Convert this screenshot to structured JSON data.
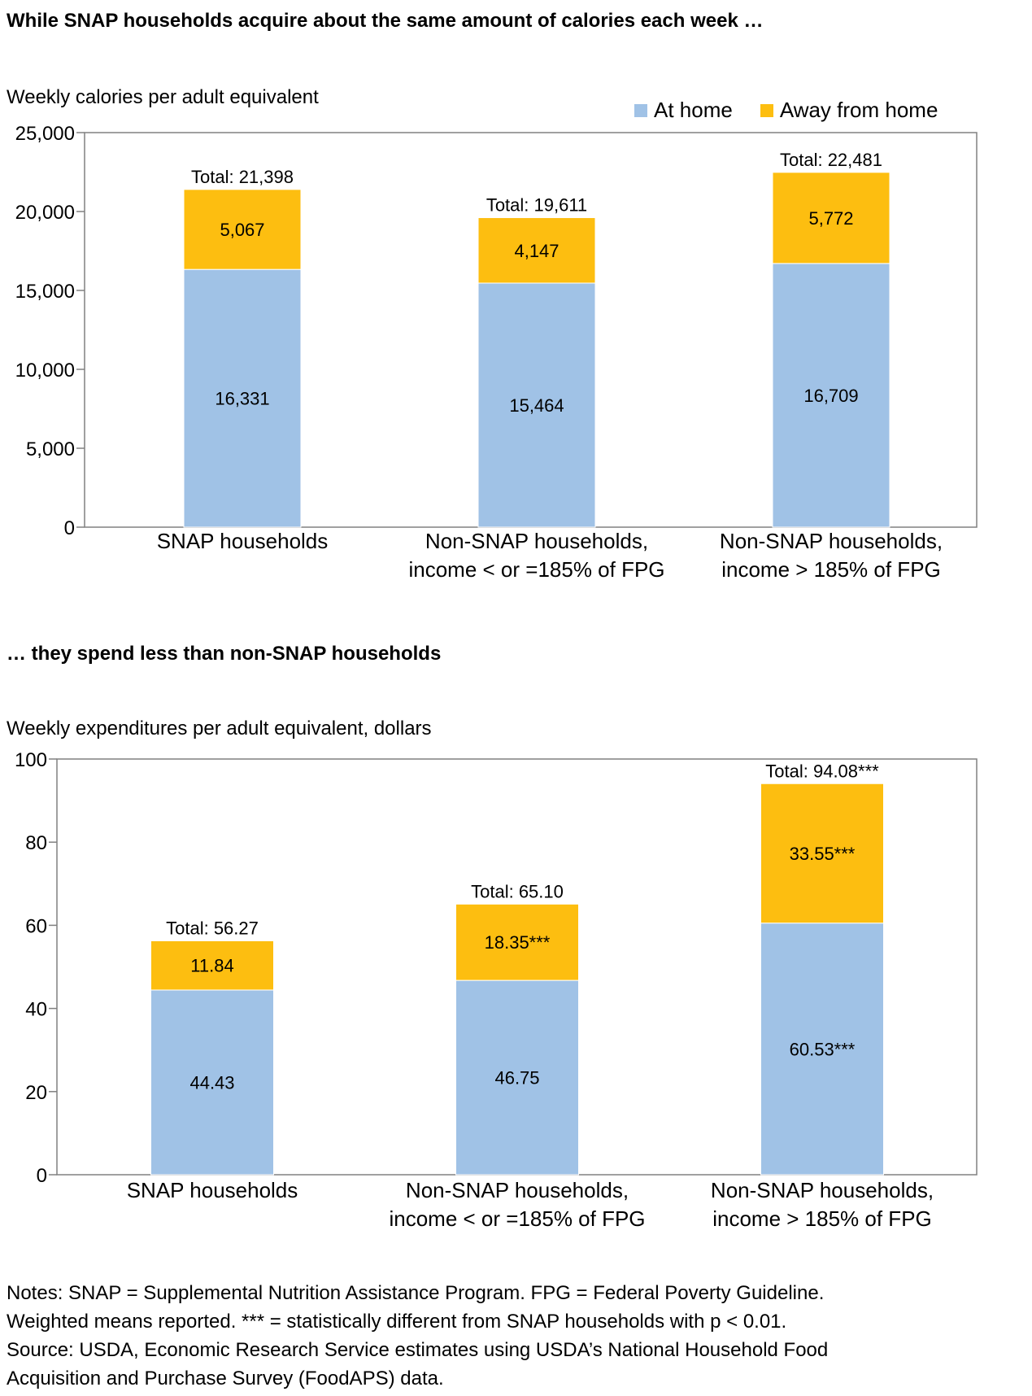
{
  "colors": {
    "at_home": "#A0C2E6",
    "away": "#FDBE10",
    "axis": "#808080"
  },
  "legend": {
    "at_home": "At home",
    "away": "Away from home"
  },
  "notes": [
    "Notes: SNAP = Supplemental Nutrition Assistance Program. FPG = Federal Poverty Guideline.",
    "Weighted means reported. *** = statistically different from SNAP households with p < 0.01.",
    "Source: USDA, Economic Research Service estimates using USDA’s National Household Food",
    "Acquisition and Purchase Survey (FoodAPS) data."
  ],
  "chart_data": [
    {
      "type": "bar",
      "stacked": true,
      "title": "While SNAP households acquire about the same amount of calories each week …",
      "ylabel": "Weekly calories per adult equivalent",
      "xlabel": "",
      "ylim": [
        0,
        25000
      ],
      "yticks": [
        "0",
        "5,000",
        "10,000",
        "15,000",
        "20,000",
        "25,000"
      ],
      "ytick_values": [
        0,
        5000,
        10000,
        15000,
        20000,
        25000
      ],
      "legend_position": "top-right",
      "categories": [
        [
          "SNAP households"
        ],
        [
          "Non-SNAP households,",
          "income < or =185% of FPG"
        ],
        [
          "Non-SNAP households,",
          "income > 185% of FPG"
        ]
      ],
      "series": [
        {
          "name": "At home",
          "values": [
            16331,
            15464,
            16709
          ],
          "labels": [
            "16,331",
            "15,464",
            "16,709"
          ]
        },
        {
          "name": "Away from home",
          "values": [
            5067,
            4147,
            5772
          ],
          "labels": [
            "5,067",
            "4,147",
            "5,772"
          ]
        }
      ],
      "totals": [
        21398,
        19611,
        22481
      ],
      "total_labels": [
        "Total: 21,398",
        "Total: 19,611",
        "Total: 22,481"
      ]
    },
    {
      "type": "bar",
      "stacked": true,
      "title": "… they spend less than non-SNAP households",
      "ylabel": "Weekly expenditures per adult equivalent, dollars",
      "xlabel": "",
      "ylim": [
        0,
        100
      ],
      "yticks": [
        "0",
        "20",
        "40",
        "60",
        "80",
        "100"
      ],
      "ytick_values": [
        0,
        20,
        40,
        60,
        80,
        100
      ],
      "categories": [
        [
          "SNAP households"
        ],
        [
          "Non-SNAP households,",
          "income < or =185% of FPG"
        ],
        [
          "Non-SNAP households,",
          "income > 185% of FPG"
        ]
      ],
      "series": [
        {
          "name": "At home",
          "values": [
            44.43,
            46.75,
            60.53
          ],
          "labels": [
            "44.43",
            "46.75",
            "60.53***"
          ]
        },
        {
          "name": "Away from home",
          "values": [
            11.84,
            18.35,
            33.55
          ],
          "labels": [
            "11.84",
            "18.35***",
            "33.55***"
          ]
        }
      ],
      "totals": [
        56.27,
        65.1,
        94.08
      ],
      "total_labels": [
        "Total: 56.27",
        "Total: 65.10",
        "Total: 94.08***"
      ]
    }
  ]
}
